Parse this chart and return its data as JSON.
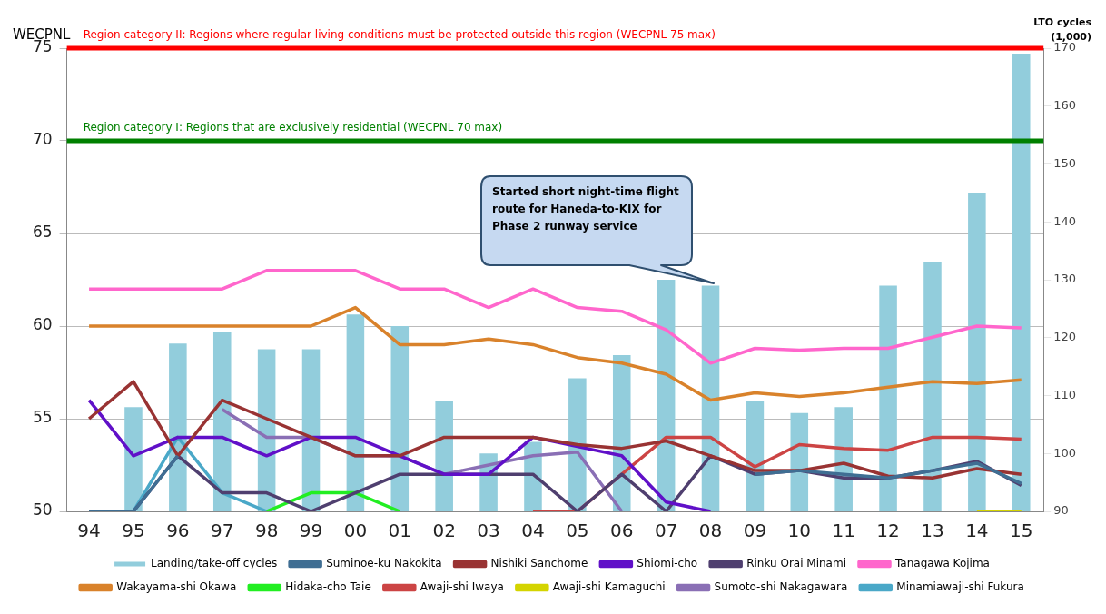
{
  "chart_data": {
    "type": "line",
    "categories": [
      "94",
      "95",
      "96",
      "97",
      "98",
      "99",
      "00",
      "01",
      "02",
      "03",
      "04",
      "05",
      "06",
      "07",
      "08",
      "09",
      "10",
      "11",
      "12",
      "13",
      "14",
      "15"
    ],
    "ylabel": "WECPNL",
    "y2label": "LTO cycles\n(1,000)",
    "ylim": [
      50,
      75
    ],
    "yticks": [
      50,
      55,
      60,
      65,
      70,
      75
    ],
    "y2lim": [
      90,
      170
    ],
    "y2ticks": [
      90,
      100,
      110,
      120,
      130,
      140,
      150,
      160,
      170
    ],
    "grid": "y",
    "legend": "bottom",
    "marker": "none",
    "line_style": "solid",
    "ref_lines": [
      {
        "axis": "y",
        "value": 75,
        "label": "Region category II: Regions where regular living conditions must be protected outside this region (WECPNL 75 max)",
        "color": "#ff0000"
      },
      {
        "axis": "y",
        "value": 70,
        "label": "Region category I: Regions that are exclusively residential (WECPNL 70 max)",
        "color": "#008000"
      }
    ],
    "annotations": [
      "Started short night-time flight route for Haneda-to-KIX for Phase 2 runway service"
    ],
    "series": [
      {
        "name": "Landing/take-off cycles",
        "type": "bar",
        "axis": "y2",
        "color": "#92cddc",
        "values": [
          null,
          108,
          119,
          121,
          118,
          118,
          124,
          122,
          109,
          100,
          102,
          113,
          117,
          130,
          129,
          109,
          107,
          108,
          129,
          133,
          145,
          169
        ]
      },
      {
        "name": "Suminoe-ku Nakokita",
        "color": "#3f6e93",
        "values": [
          50,
          50,
          53,
          null,
          null,
          null,
          null,
          null,
          null,
          null,
          null,
          null,
          null,
          null,
          null,
          52,
          52.2,
          52,
          51.8,
          52.2,
          52.6,
          51.5
        ]
      },
      {
        "name": "Nishiki Sanchome",
        "color": "#993333",
        "values": [
          55,
          57,
          53,
          56,
          55,
          54,
          53,
          53,
          54,
          54,
          54,
          53.6,
          53.4,
          53.8,
          53,
          52.2,
          52.2,
          52.6,
          51.9,
          51.8,
          52.3,
          52
        ]
      },
      {
        "name": "Shiomi-cho",
        "color": "#6010c8",
        "values": [
          56,
          53,
          54,
          54,
          53,
          54,
          54,
          53,
          52,
          52,
          54,
          53.5,
          53,
          50.5,
          50,
          null,
          null,
          null,
          null,
          null,
          null,
          null
        ]
      },
      {
        "name": "Rinku Orai Minami",
        "color": "#4f3f6f",
        "values": [
          50,
          50,
          53,
          51,
          51,
          50,
          51,
          52,
          52,
          52,
          52,
          50,
          52,
          50,
          53,
          52,
          52.2,
          51.8,
          51.8,
          52.2,
          52.7,
          51.4
        ]
      },
      {
        "name": "Tanagawa Kojima",
        "color": "#ff66cc",
        "values": [
          62,
          62,
          62,
          62,
          63,
          63,
          63,
          62,
          62,
          61,
          62,
          61,
          60.8,
          59.8,
          58,
          58.8,
          58.7,
          58.8,
          58.8,
          59.4,
          60,
          59.9
        ]
      },
      {
        "name": "Wakayama-shi Okawa",
        "color": "#d9822b",
        "values": [
          60,
          60,
          60,
          60,
          60,
          60,
          61,
          59,
          59,
          59.3,
          59,
          58.3,
          58,
          57.4,
          56,
          56.4,
          56.2,
          56.4,
          56.7,
          57,
          56.9,
          57.1
        ]
      },
      {
        "name": "Hidaka-cho Taie",
        "color": "#22ee22",
        "values": [
          null,
          null,
          null,
          null,
          50,
          51,
          51,
          50,
          null,
          null,
          null,
          null,
          null,
          null,
          null,
          null,
          null,
          null,
          null,
          null,
          null,
          null
        ]
      },
      {
        "name": "Awaji-shi Iwaya",
        "color": "#cc4444",
        "values": [
          null,
          null,
          null,
          null,
          null,
          null,
          null,
          null,
          null,
          null,
          50,
          50,
          52,
          54,
          54,
          52.4,
          53.6,
          53.4,
          53.3,
          54,
          54,
          53.9
        ]
      },
      {
        "name": "Awaji-shi Kamaguchi",
        "color": "#d4d400",
        "values": [
          null,
          null,
          null,
          null,
          null,
          null,
          null,
          null,
          null,
          null,
          null,
          null,
          null,
          null,
          null,
          null,
          null,
          null,
          null,
          null,
          50,
          50
        ]
      },
      {
        "name": "Sumoto-shi Nakagawara",
        "color": "#8a6fb5",
        "values": [
          null,
          null,
          null,
          55.5,
          54,
          54,
          53,
          53,
          52,
          52.5,
          53,
          53.2,
          50,
          null,
          null,
          null,
          null,
          null,
          null,
          null,
          null,
          null
        ]
      },
      {
        "name": "Minamiawaji-shi Fukura",
        "color": "#4aa8c8",
        "values": [
          null,
          50,
          54,
          51,
          50,
          null,
          null,
          null,
          null,
          null,
          null,
          null,
          null,
          null,
          null,
          null,
          null,
          null,
          null,
          null,
          null,
          null
        ]
      }
    ]
  }
}
